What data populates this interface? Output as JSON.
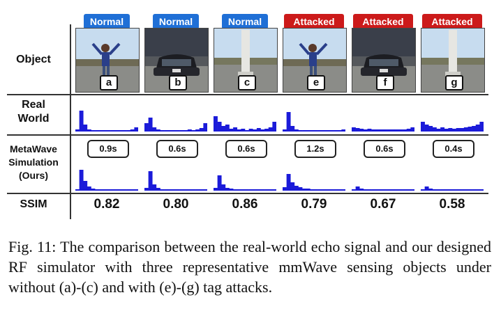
{
  "figure": {
    "row_labels": {
      "object": "Object",
      "real_world_1": "Real",
      "real_world_2": "World",
      "sim_1": "MetaWave",
      "sim_2": "Simulation",
      "sim_3": "(Ours)",
      "ssim": "SSIM"
    },
    "columns": [
      {
        "status": "Normal",
        "letter": "a",
        "time": "0.9s",
        "ssim": "0.82",
        "scene": "child",
        "real_wave": [
          3,
          30,
          10,
          3,
          2,
          2,
          2,
          2,
          2,
          2,
          2,
          2,
          2,
          2,
          3,
          6
        ],
        "sim_wave": [
          2,
          30,
          14,
          6,
          3,
          2,
          2,
          2,
          2,
          2,
          2,
          2,
          2,
          2,
          2,
          2
        ]
      },
      {
        "status": "Normal",
        "letter": "b",
        "time": "0.6s",
        "ssim": "0.80",
        "scene": "car",
        "real_wave": [
          12,
          20,
          6,
          3,
          2,
          2,
          2,
          2,
          2,
          2,
          2,
          3,
          2,
          3,
          5,
          12
        ],
        "sim_wave": [
          4,
          28,
          9,
          4,
          2,
          2,
          2,
          2,
          2,
          2,
          2,
          2,
          2,
          2,
          2,
          2
        ]
      },
      {
        "status": "Normal",
        "letter": "c",
        "time": "0.6s",
        "ssim": "0.86",
        "scene": "pole",
        "real_wave": [
          22,
          14,
          8,
          10,
          4,
          6,
          3,
          4,
          2,
          4,
          3,
          5,
          3,
          4,
          6,
          14
        ],
        "sim_wave": [
          4,
          22,
          9,
          4,
          3,
          2,
          2,
          2,
          2,
          2,
          2,
          2,
          2,
          2,
          2,
          2
        ]
      },
      {
        "status": "Attacked",
        "letter": "e",
        "time": "1.2s",
        "ssim": "0.79",
        "scene": "child",
        "real_wave": [
          3,
          28,
          8,
          3,
          2,
          2,
          2,
          2,
          2,
          2,
          2,
          2,
          2,
          2,
          2,
          3
        ],
        "sim_wave": [
          5,
          24,
          12,
          7,
          5,
          3,
          3,
          2,
          2,
          2,
          2,
          2,
          2,
          2,
          2,
          2
        ]
      },
      {
        "status": "Attacked",
        "letter": "f",
        "time": "0.6s",
        "ssim": "0.67",
        "scene": "car",
        "real_wave": [
          6,
          5,
          4,
          3,
          4,
          3,
          3,
          3,
          3,
          3,
          3,
          3,
          3,
          3,
          4,
          6
        ],
        "sim_wave": [
          2,
          6,
          3,
          2,
          2,
          2,
          2,
          2,
          2,
          2,
          2,
          2,
          2,
          2,
          2,
          2
        ]
      },
      {
        "status": "Attacked",
        "letter": "g",
        "time": "0.4s",
        "ssim": "0.58",
        "scene": "pole",
        "real_wave": [
          14,
          10,
          8,
          6,
          4,
          6,
          4,
          5,
          4,
          5,
          5,
          6,
          7,
          8,
          10,
          14
        ],
        "sim_wave": [
          2,
          6,
          3,
          2,
          2,
          2,
          2,
          2,
          2,
          2,
          2,
          2,
          2,
          2,
          2,
          2
        ]
      }
    ],
    "colors": {
      "normal": "#1f6fd6",
      "attacked": "#cc1a1a",
      "wave": "#1b1bd9"
    }
  },
  "caption": "Fig. 11: The comparison between the real-world echo signal and our designed RF simulator with three representative mmWave sensing objects under without (a)-(c) and with (e)-(g) tag attacks."
}
